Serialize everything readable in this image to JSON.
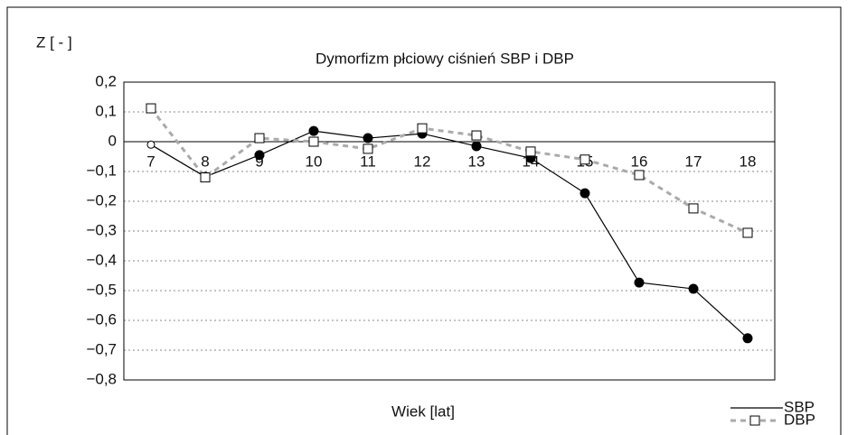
{
  "chart_data": {
    "type": "line",
    "title": "Dymorfizm płciowy ciśnień SBP i DBP",
    "y_label": "Z  [ - ]",
    "x_label": "Wiek  [lat]",
    "categories": [
      "7",
      "8",
      "9",
      "10",
      "11",
      "12",
      "13",
      "14",
      "15",
      "16",
      "17",
      "18"
    ],
    "series": [
      {
        "name": "SBP",
        "color": "#000000",
        "values": [
          -0.01,
          -0.118,
          -0.045,
          0.036,
          0.012,
          0.027,
          -0.015,
          -0.055,
          -0.173,
          -0.473,
          -0.494,
          -0.66
        ]
      },
      {
        "name": "DBP",
        "color": "#aaaaaa",
        "values": [
          0.112,
          -0.12,
          0.012,
          0,
          -0.024,
          0.045,
          0.021,
          -0.033,
          -0.06,
          -0.112,
          -0.224,
          -0.306
        ]
      }
    ],
    "ylim": [
      -0.8,
      0.2
    ],
    "yticks": [
      {
        "value": 0.2,
        "label": "0,2"
      },
      {
        "value": 0.1,
        "label": "0,1"
      },
      0,
      {
        "value": -0.1,
        "label": "−0,1"
      },
      {
        "value": -0.2,
        "label": "−0,2"
      },
      {
        "value": -0.3,
        "label": "−0,3"
      },
      {
        "value": -0.4,
        "label": "−0,4"
      },
      {
        "value": -0.5,
        "label": "−0,5"
      },
      {
        "value": -0.6,
        "label": "−0,6"
      },
      {
        "value": -0.7,
        "label": "−0,7"
      },
      {
        "value": -0.8,
        "label": "−0,8"
      }
    ],
    "grid": true,
    "legend": "bottom-right"
  }
}
